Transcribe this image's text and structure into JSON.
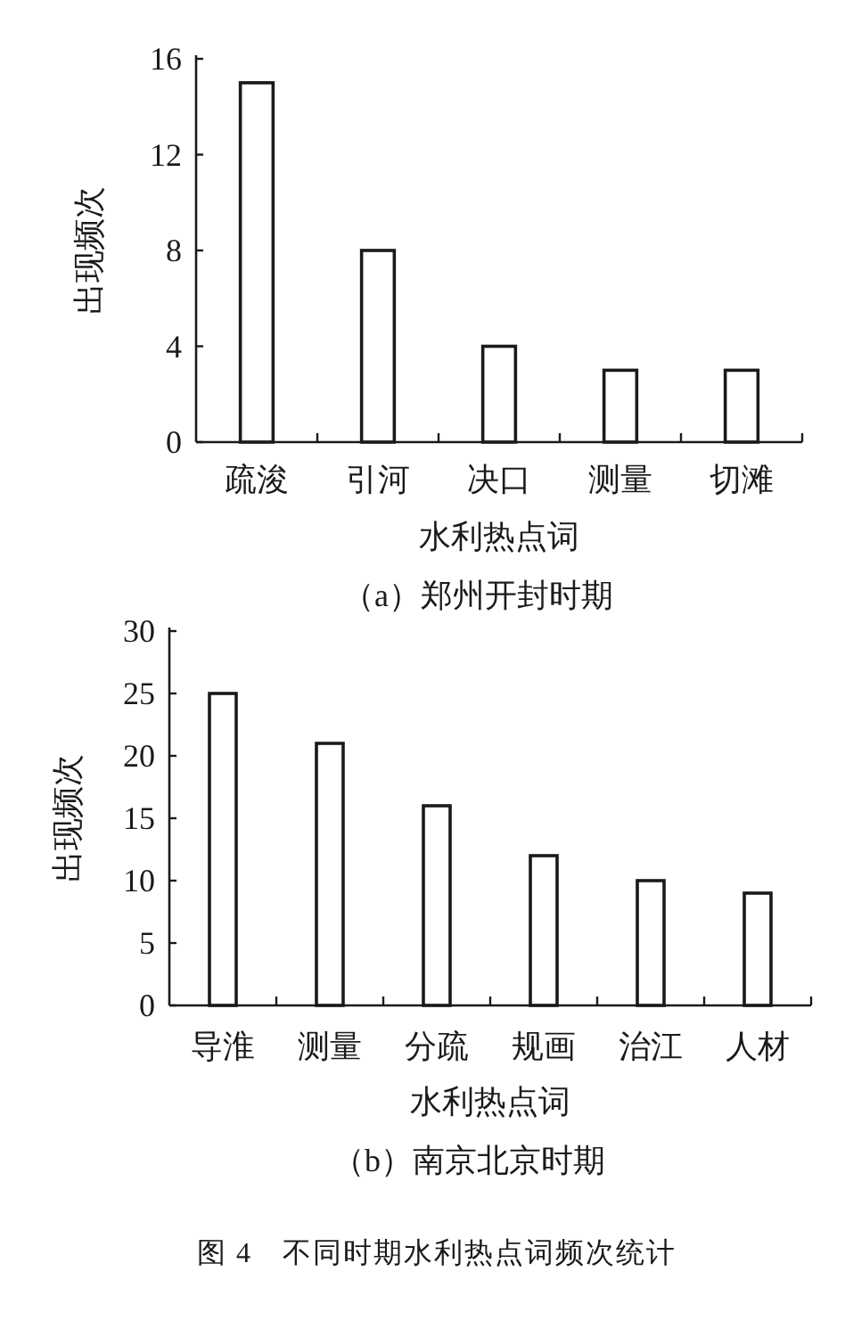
{
  "chart_data": [
    {
      "type": "bar",
      "title": "（a）郑州开封时期",
      "xlabel": "水利热点词",
      "ylabel": "出现频次",
      "categories": [
        "疏浚",
        "引河",
        "决口",
        "测量",
        "切滩"
      ],
      "values": [
        15,
        8,
        4,
        3,
        3
      ],
      "color": "#ffffff",
      "ylim": [
        0,
        16
      ],
      "yticks": [
        0,
        4,
        8,
        12,
        16
      ]
    },
    {
      "type": "bar",
      "title": "（b）南京北京时期",
      "xlabel": "水利热点词",
      "ylabel": "出现频次",
      "categories": [
        "导淮",
        "测量",
        "分疏",
        "规画",
        "治江",
        "人材"
      ],
      "values": [
        25,
        21,
        16,
        12,
        10,
        9
      ],
      "color": "#ffffff",
      "ylim": [
        0,
        30
      ],
      "yticks": [
        0,
        5,
        10,
        15,
        20,
        25,
        30
      ],
      "annotations": [
        "图 4　不同时期水利热点词频次统计"
      ]
    }
  ]
}
